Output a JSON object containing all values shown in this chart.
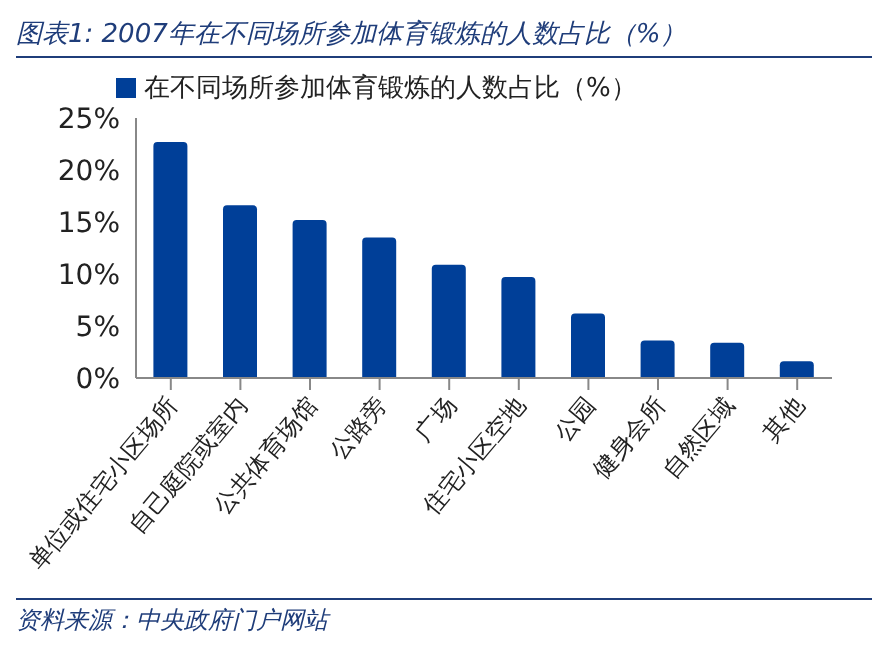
{
  "chart_data": {
    "type": "bar",
    "title": "图表1: 2007年在不同场所参加体育锻炼的人数占比（%）",
    "categories": [
      "单位或住宅小区场所",
      "自己庭院或室内",
      "公共体育场馆",
      "公路旁",
      "广场",
      "住宅小区空地",
      "公园",
      "健身会所",
      "自然区域",
      "其他"
    ],
    "series": [
      {
        "name": "在不同场所参加体育锻炼的人数占比（%）",
        "color": "#003f98",
        "values": [
          22.7,
          16.6,
          15.2,
          13.5,
          10.9,
          9.7,
          6.2,
          3.6,
          3.4,
          1.6
        ]
      }
    ],
    "ylim": [
      0,
      25
    ],
    "yticks": [
      {
        "value": 0,
        "label": "0%"
      },
      {
        "value": 5,
        "label": "5%"
      },
      {
        "value": 10,
        "label": "10%"
      },
      {
        "value": 15,
        "label": "15%"
      },
      {
        "value": 20,
        "label": "20%"
      },
      {
        "value": 25,
        "label": "25%"
      }
    ],
    "grid": false,
    "legend": "top left",
    "annotations": [
      "资料来源：中央政府门户网站"
    ]
  }
}
